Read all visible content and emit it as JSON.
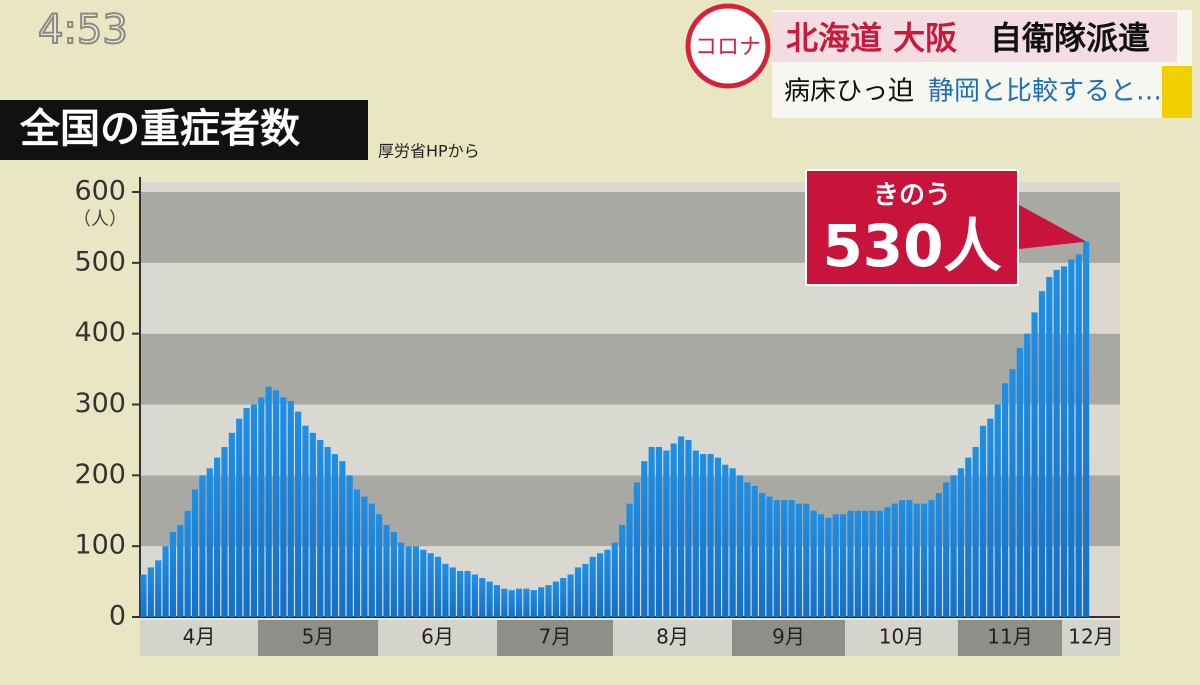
{
  "overlay": {
    "clock": "4:53",
    "badge": "コロナ",
    "headline": [
      "北海道 大阪",
      "自衛隊派遣"
    ],
    "subheadline": [
      "病床ひっ迫",
      "静岡と比較すると…"
    ]
  },
  "chart_data": {
    "type": "bar",
    "title": "全国の重症者数",
    "source": "厚労省HPから",
    "unit": "（人）",
    "color": "#1f8fe6",
    "month_labels": [
      "4月",
      "5月",
      "6月",
      "7月",
      "8月",
      "9月",
      "10月",
      "11月",
      "12月"
    ],
    "values": [
      60,
      70,
      80,
      100,
      120,
      130,
      150,
      180,
      200,
      210,
      225,
      240,
      260,
      280,
      295,
      300,
      310,
      325,
      320,
      310,
      305,
      290,
      270,
      260,
      250,
      240,
      230,
      220,
      200,
      180,
      170,
      160,
      145,
      130,
      120,
      105,
      100,
      100,
      95,
      90,
      85,
      75,
      70,
      65,
      65,
      60,
      55,
      50,
      45,
      40,
      38,
      40,
      40,
      38,
      42,
      45,
      50,
      55,
      60,
      70,
      75,
      85,
      90,
      95,
      105,
      130,
      160,
      190,
      220,
      240,
      240,
      235,
      245,
      255,
      250,
      235,
      230,
      230,
      225,
      215,
      210,
      200,
      190,
      185,
      175,
      170,
      165,
      165,
      165,
      160,
      160,
      150,
      145,
      140,
      145,
      145,
      150,
      150,
      150,
      150,
      150,
      155,
      160,
      165,
      165,
      160,
      160,
      165,
      175,
      190,
      200,
      210,
      225,
      240,
      270,
      280,
      300,
      330,
      350,
      380,
      400,
      430,
      460,
      480,
      490,
      495,
      505,
      512,
      530
    ],
    "ylim": [
      0,
      600
    ],
    "yticks": [
      0,
      100,
      200,
      300,
      400,
      500,
      600
    ],
    "annotation": {
      "label": "きのう",
      "text": "530人"
    }
  }
}
